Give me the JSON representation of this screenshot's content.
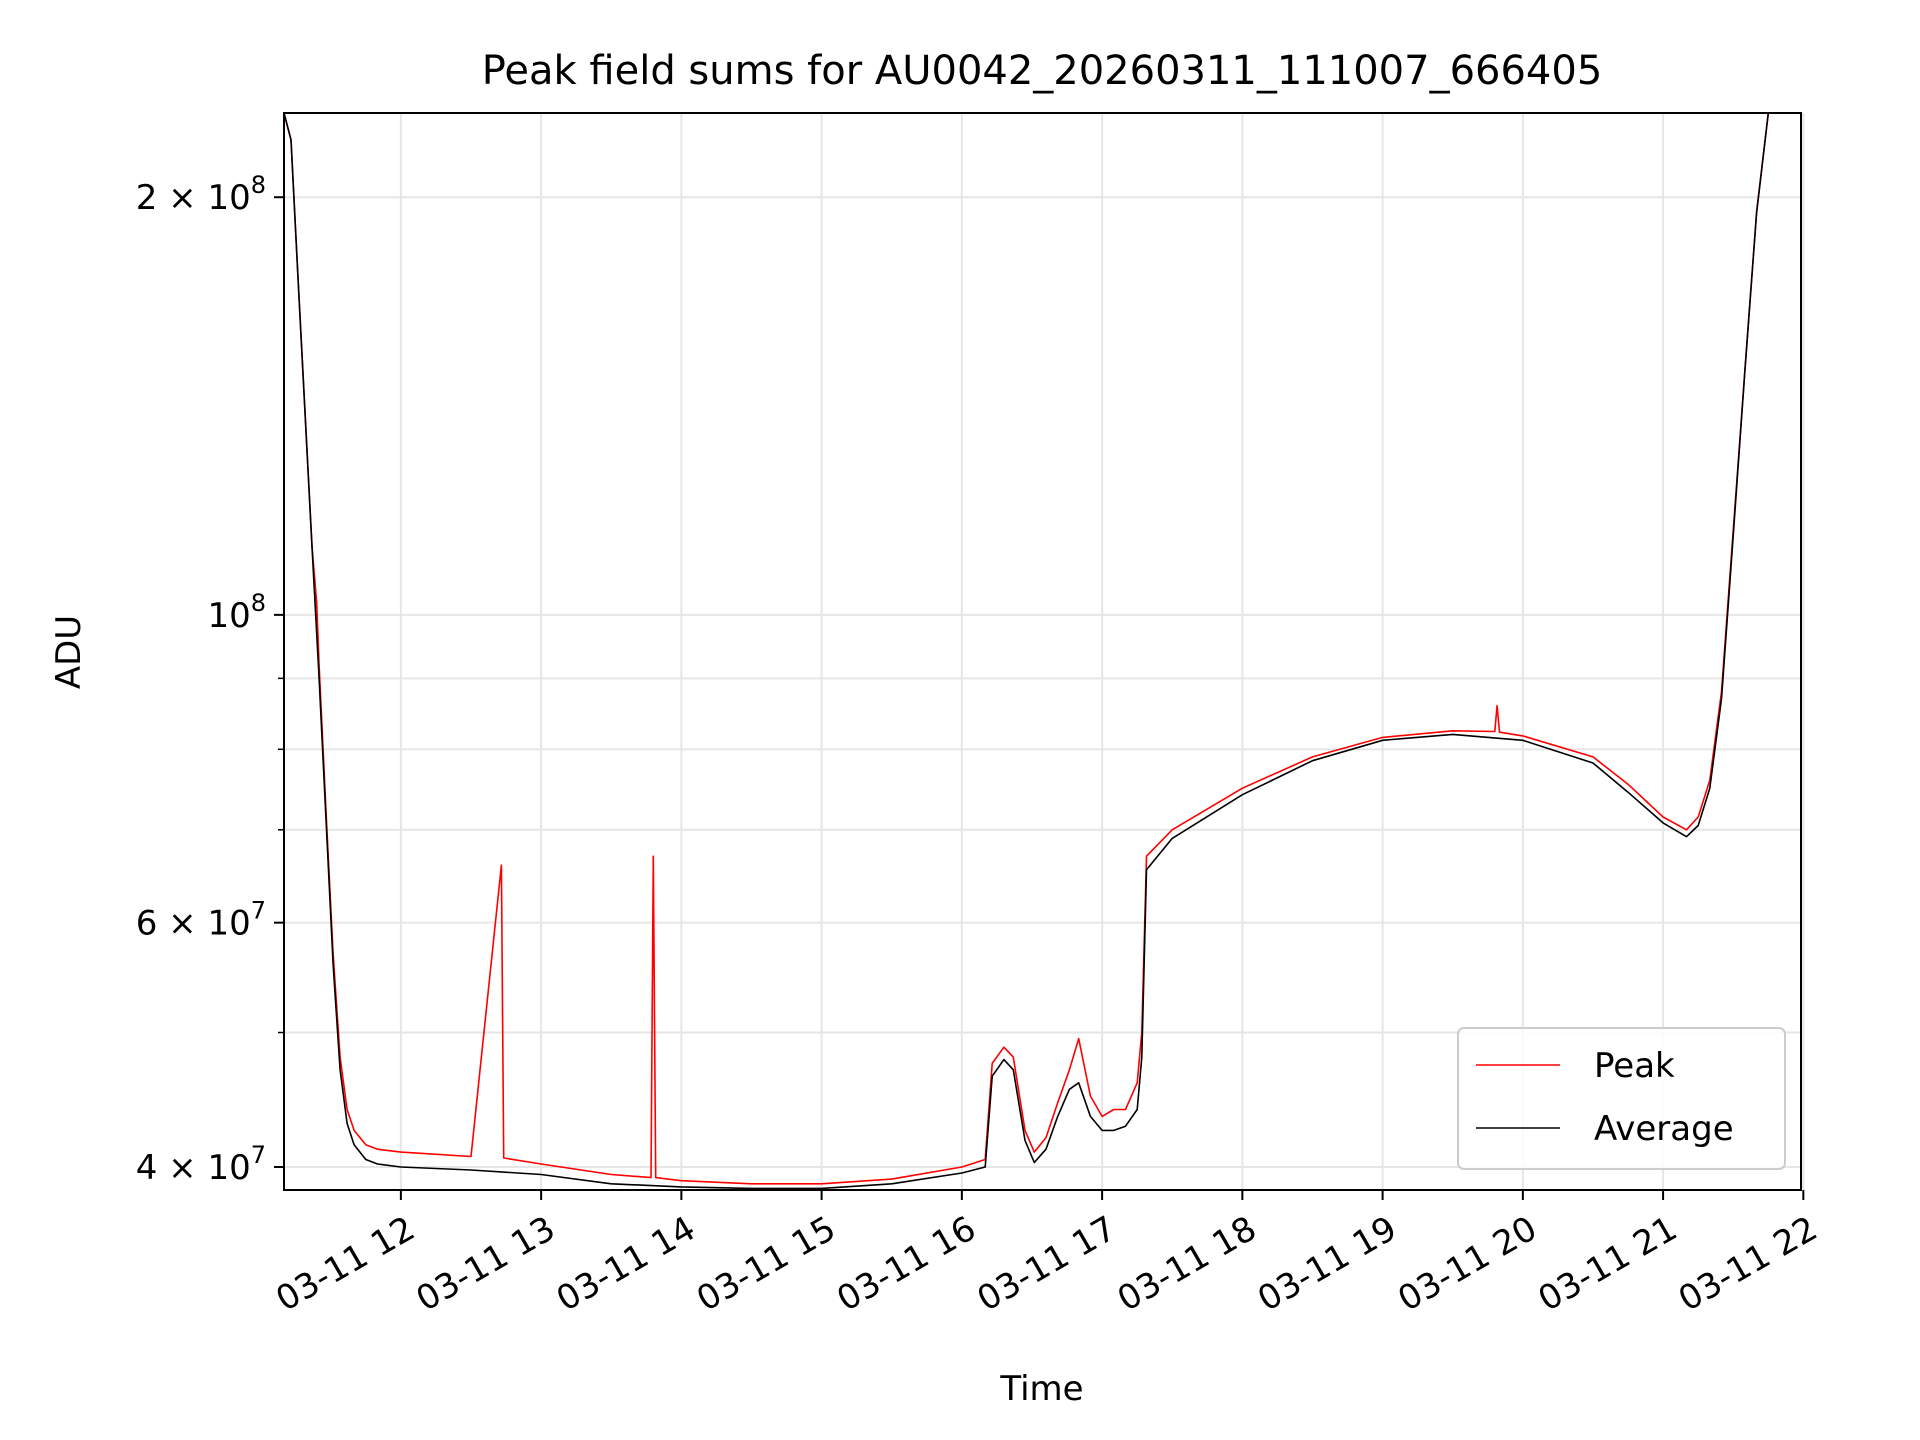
{
  "chart_data": {
    "type": "line",
    "title": "Peak field sums for AU0042_20260311_111007_666405",
    "xlabel": "Time",
    "ylabel": "ADU",
    "yscale": "log",
    "ylim": [
      38500000,
      230000000
    ],
    "xlim": [
      "2026-03-11 11:10",
      "2026-03-11 21:59"
    ],
    "grid": true,
    "legend_position": "lower-right",
    "x_ticks": [
      {
        "value": "2026-03-11 12:00",
        "label": "03-11 12"
      },
      {
        "value": "2026-03-11 13:00",
        "label": "03-11 13"
      },
      {
        "value": "2026-03-11 14:00",
        "label": "03-11 14"
      },
      {
        "value": "2026-03-11 15:00",
        "label": "03-11 15"
      },
      {
        "value": "2026-03-11 16:00",
        "label": "03-11 16"
      },
      {
        "value": "2026-03-11 17:00",
        "label": "03-11 17"
      },
      {
        "value": "2026-03-11 18:00",
        "label": "03-11 18"
      },
      {
        "value": "2026-03-11 19:00",
        "label": "03-11 19"
      },
      {
        "value": "2026-03-11 20:00",
        "label": "03-11 20"
      },
      {
        "value": "2026-03-11 21:00",
        "label": "03-11 21"
      },
      {
        "value": "2026-03-11 22:00",
        "label": "03-11 22"
      }
    ],
    "y_ticks": [
      {
        "value": 40000000,
        "mantissa": "4",
        "exponent": "7"
      },
      {
        "value": 60000000,
        "mantissa": "6",
        "exponent": "7"
      },
      {
        "value": 100000000,
        "mantissa": "",
        "exponent": "8"
      },
      {
        "value": 200000000,
        "mantissa": "2",
        "exponent": "8"
      }
    ],
    "y_minor_ticks": [
      50000000,
      70000000,
      80000000,
      90000000
    ],
    "series": [
      {
        "name": "Peak",
        "color": "#ff0000",
        "points": [
          [
            "2026-03-11 11:10",
            230000000
          ],
          [
            "2026-03-11 11:13",
            220000000
          ],
          [
            "2026-03-11 11:16",
            175000000
          ],
          [
            "2026-03-11 11:19",
            140000000
          ],
          [
            "2026-03-11 11:22",
            112000000
          ],
          [
            "2026-03-11 11:24",
            102000000
          ],
          [
            "2026-03-11 11:25",
            92000000
          ],
          [
            "2026-03-11 11:28",
            72000000
          ],
          [
            "2026-03-11 11:31",
            57000000
          ],
          [
            "2026-03-11 11:34",
            48000000
          ],
          [
            "2026-03-11 11:37",
            44000000
          ],
          [
            "2026-03-11 11:40",
            42500000
          ],
          [
            "2026-03-11 11:45",
            41500000
          ],
          [
            "2026-03-11 11:50",
            41200000
          ],
          [
            "2026-03-11 12:00",
            41000000
          ],
          [
            "2026-03-11 12:30",
            40700000
          ],
          [
            "2026-03-11 12:43",
            66000000
          ],
          [
            "2026-03-11 12:44",
            40600000
          ],
          [
            "2026-03-11 13:00",
            40200000
          ],
          [
            "2026-03-11 13:30",
            39500000
          ],
          [
            "2026-03-11 13:47",
            39300000
          ],
          [
            "2026-03-11 13:48",
            67000000
          ],
          [
            "2026-03-11 13:49",
            39300000
          ],
          [
            "2026-03-11 14:00",
            39100000
          ],
          [
            "2026-03-11 14:30",
            38900000
          ],
          [
            "2026-03-11 15:00",
            38900000
          ],
          [
            "2026-03-11 15:30",
            39200000
          ],
          [
            "2026-03-11 16:00",
            40000000
          ],
          [
            "2026-03-11 16:10",
            40500000
          ],
          [
            "2026-03-11 16:13",
            47500000
          ],
          [
            "2026-03-11 16:18",
            48800000
          ],
          [
            "2026-03-11 16:22",
            48000000
          ],
          [
            "2026-03-11 16:27",
            42500000
          ],
          [
            "2026-03-11 16:31",
            41000000
          ],
          [
            "2026-03-11 16:36",
            42000000
          ],
          [
            "2026-03-11 16:41",
            44500000
          ],
          [
            "2026-03-11 16:46",
            47000000
          ],
          [
            "2026-03-11 16:50",
            49500000
          ],
          [
            "2026-03-11 16:55",
            45000000
          ],
          [
            "2026-03-11 17:00",
            43500000
          ],
          [
            "2026-03-11 17:05",
            44000000
          ],
          [
            "2026-03-11 17:10",
            44000000
          ],
          [
            "2026-03-11 17:15",
            46000000
          ],
          [
            "2026-03-11 17:17",
            50000000
          ],
          [
            "2026-03-11 17:19",
            67000000
          ],
          [
            "2026-03-11 17:30",
            70000000
          ],
          [
            "2026-03-11 18:00",
            75000000
          ],
          [
            "2026-03-11 18:30",
            79000000
          ],
          [
            "2026-03-11 19:00",
            81600000
          ],
          [
            "2026-03-11 19:30",
            82500000
          ],
          [
            "2026-03-11 19:48",
            82400000
          ],
          [
            "2026-03-11 19:49",
            86000000
          ],
          [
            "2026-03-11 19:50",
            82300000
          ],
          [
            "2026-03-11 20:00",
            81800000
          ],
          [
            "2026-03-11 20:30",
            79000000
          ],
          [
            "2026-03-11 20:45",
            75500000
          ],
          [
            "2026-03-11 21:00",
            71500000
          ],
          [
            "2026-03-11 21:10",
            70000000
          ],
          [
            "2026-03-11 21:15",
            71500000
          ],
          [
            "2026-03-11 21:20",
            76000000
          ],
          [
            "2026-03-11 21:25",
            88000000
          ],
          [
            "2026-03-11 21:30",
            115000000
          ],
          [
            "2026-03-11 21:35",
            150000000
          ],
          [
            "2026-03-11 21:40",
            195000000
          ],
          [
            "2026-03-11 21:45",
            230000000
          ]
        ]
      },
      {
        "name": "Average",
        "color": "#000000",
        "points": [
          [
            "2026-03-11 11:10",
            230000000
          ],
          [
            "2026-03-11 11:13",
            220000000
          ],
          [
            "2026-03-11 11:16",
            175000000
          ],
          [
            "2026-03-11 11:19",
            140000000
          ],
          [
            "2026-03-11 11:22",
            112000000
          ],
          [
            "2026-03-11 11:25",
            90000000
          ],
          [
            "2026-03-11 11:28",
            71000000
          ],
          [
            "2026-03-11 11:31",
            56000000
          ],
          [
            "2026-03-11 11:34",
            47000000
          ],
          [
            "2026-03-11 11:37",
            43000000
          ],
          [
            "2026-03-11 11:40",
            41500000
          ],
          [
            "2026-03-11 11:45",
            40500000
          ],
          [
            "2026-03-11 11:50",
            40200000
          ],
          [
            "2026-03-11 12:00",
            40000000
          ],
          [
            "2026-03-11 12:30",
            39800000
          ],
          [
            "2026-03-11 13:00",
            39500000
          ],
          [
            "2026-03-11 13:30",
            38900000
          ],
          [
            "2026-03-11 14:00",
            38700000
          ],
          [
            "2026-03-11 14:30",
            38600000
          ],
          [
            "2026-03-11 15:00",
            38600000
          ],
          [
            "2026-03-11 15:30",
            38900000
          ],
          [
            "2026-03-11 16:00",
            39600000
          ],
          [
            "2026-03-11 16:10",
            40000000
          ],
          [
            "2026-03-11 16:13",
            46500000
          ],
          [
            "2026-03-11 16:18",
            47800000
          ],
          [
            "2026-03-11 16:22",
            47000000
          ],
          [
            "2026-03-11 16:27",
            41800000
          ],
          [
            "2026-03-11 16:31",
            40300000
          ],
          [
            "2026-03-11 16:36",
            41200000
          ],
          [
            "2026-03-11 16:41",
            43500000
          ],
          [
            "2026-03-11 16:46",
            45500000
          ],
          [
            "2026-03-11 16:50",
            46000000
          ],
          [
            "2026-03-11 16:55",
            43500000
          ],
          [
            "2026-03-11 17:00",
            42500000
          ],
          [
            "2026-03-11 17:05",
            42500000
          ],
          [
            "2026-03-11 17:10",
            42800000
          ],
          [
            "2026-03-11 17:15",
            44000000
          ],
          [
            "2026-03-11 17:17",
            48000000
          ],
          [
            "2026-03-11 17:19",
            65500000
          ],
          [
            "2026-03-11 17:30",
            69000000
          ],
          [
            "2026-03-11 18:00",
            74200000
          ],
          [
            "2026-03-11 18:30",
            78500000
          ],
          [
            "2026-03-11 19:00",
            81200000
          ],
          [
            "2026-03-11 19:30",
            82000000
          ],
          [
            "2026-03-11 20:00",
            81200000
          ],
          [
            "2026-03-11 20:30",
            78200000
          ],
          [
            "2026-03-11 20:45",
            74500000
          ],
          [
            "2026-03-11 21:00",
            70800000
          ],
          [
            "2026-03-11 21:10",
            69200000
          ],
          [
            "2026-03-11 21:15",
            70500000
          ],
          [
            "2026-03-11 21:20",
            75000000
          ],
          [
            "2026-03-11 21:25",
            87000000
          ],
          [
            "2026-03-11 21:30",
            114000000
          ],
          [
            "2026-03-11 21:35",
            150000000
          ],
          [
            "2026-03-11 21:40",
            195000000
          ],
          [
            "2026-03-11 21:45",
            230000000
          ]
        ]
      }
    ]
  }
}
